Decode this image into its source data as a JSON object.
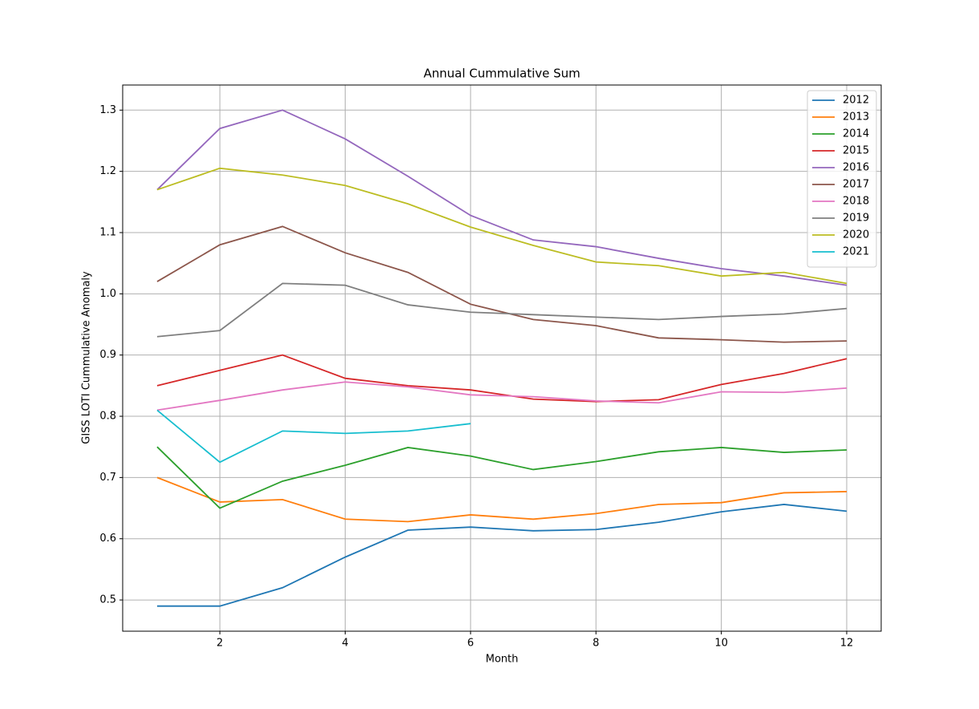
{
  "chart_data": {
    "type": "line",
    "title": "Annual Cummulative Sum",
    "x_label": "Month",
    "y_label": "GISS LOTI Cummulative Anomaly",
    "x": [
      1,
      2,
      3,
      4,
      5,
      6,
      7,
      8,
      9,
      10,
      11,
      12
    ],
    "series": [
      {
        "name": "2012",
        "color": "#1f77b4",
        "values": [
          0.49,
          0.49,
          0.52,
          0.57,
          0.614,
          0.619,
          0.613,
          0.615,
          0.627,
          0.644,
          0.656,
          0.645
        ]
      },
      {
        "name": "2013",
        "color": "#ff7f0e",
        "values": [
          0.7,
          0.66,
          0.664,
          0.632,
          0.628,
          0.639,
          0.632,
          0.641,
          0.656,
          0.659,
          0.675,
          0.677
        ]
      },
      {
        "name": "2014",
        "color": "#2ca02c",
        "values": [
          0.75,
          0.65,
          0.694,
          0.72,
          0.749,
          0.735,
          0.713,
          0.726,
          0.742,
          0.749,
          0.741,
          0.745
        ]
      },
      {
        "name": "2015",
        "color": "#d62728",
        "values": [
          0.85,
          0.875,
          0.9,
          0.862,
          0.85,
          0.843,
          0.828,
          0.824,
          0.827,
          0.852,
          0.87,
          0.894
        ]
      },
      {
        "name": "2016",
        "color": "#9467bd",
        "values": [
          1.17,
          1.27,
          1.3,
          1.253,
          1.192,
          1.128,
          1.088,
          1.077,
          1.058,
          1.041,
          1.029,
          1.014
        ]
      },
      {
        "name": "2017",
        "color": "#8c564b",
        "values": [
          1.02,
          1.08,
          1.11,
          1.067,
          1.035,
          0.983,
          0.958,
          0.948,
          0.928,
          0.925,
          0.921,
          0.923
        ]
      },
      {
        "name": "2018",
        "color": "#e377c2",
        "values": [
          0.81,
          0.826,
          0.843,
          0.856,
          0.848,
          0.835,
          0.832,
          0.825,
          0.822,
          0.84,
          0.839,
          0.846
        ]
      },
      {
        "name": "2019",
        "color": "#7f7f7f",
        "values": [
          0.93,
          0.94,
          1.017,
          1.014,
          0.982,
          0.97,
          0.966,
          0.962,
          0.958,
          0.963,
          0.967,
          0.976
        ]
      },
      {
        "name": "2020",
        "color": "#bcbd22",
        "values": [
          1.17,
          1.205,
          1.194,
          1.177,
          1.147,
          1.109,
          1.079,
          1.052,
          1.046,
          1.029,
          1.035,
          1.017
        ]
      },
      {
        "name": "2021",
        "color": "#17becf",
        "values": [
          0.81,
          0.725,
          0.776,
          0.772,
          0.776,
          0.788,
          null,
          null,
          null,
          null,
          null,
          null
        ]
      }
    ],
    "xlim": [
      0.45,
      12.55
    ],
    "xticks": [
      2,
      4,
      6,
      8,
      10,
      12
    ],
    "ylim": [
      0.449,
      1.341
    ],
    "yticks": [
      0.5,
      0.6,
      0.7,
      0.8,
      0.9,
      {
        "value": 1,
        "label": "1.0"
      },
      1.1,
      1.2,
      1.3
    ],
    "grid": true,
    "legend": "upper right"
  }
}
